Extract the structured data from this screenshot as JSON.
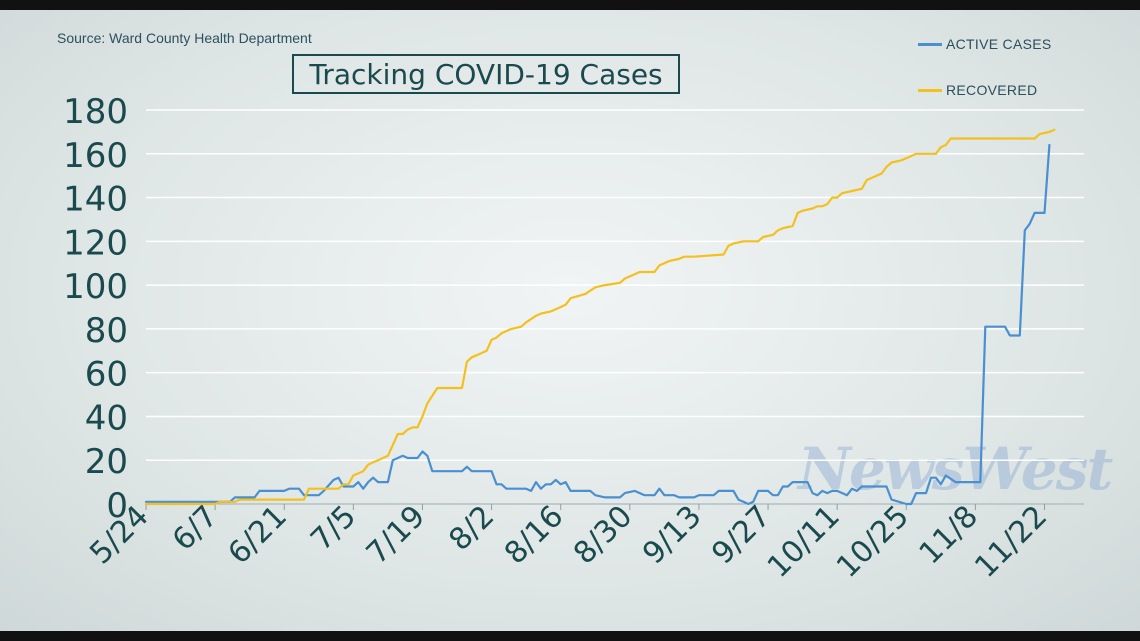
{
  "source": "Source: Ward County Health Department",
  "title": "Tracking COVID-19 Cases",
  "watermark": "NewsWest",
  "colors": {
    "active": "#4a8fd0",
    "recovered": "#f4c01e",
    "axis_text": "#1b4a4e",
    "grid": "#ffffff"
  },
  "chart_data": {
    "type": "line",
    "title": "Tracking COVID-19 Cases",
    "xlabel": "",
    "ylabel": "",
    "ylim": [
      0,
      180
    ],
    "yticks": [
      0,
      20,
      40,
      60,
      80,
      100,
      120,
      140,
      160,
      180
    ],
    "xlim": [
      "2020-05-24",
      "2020-11-30"
    ],
    "xticks": [
      "5/24",
      "6/7",
      "6/21",
      "7/5",
      "7/19",
      "8/2",
      "8/16",
      "8/30",
      "9/13",
      "9/27",
      "10/11",
      "10/25",
      "11/8",
      "11/22"
    ],
    "grid": "horizontal",
    "legend_position": "top-right",
    "series": [
      {
        "name": "ACTIVE CASES",
        "color": "#4a8fd0",
        "points": [
          [
            "5/24",
            1
          ],
          [
            "6/7",
            1
          ],
          [
            "6/10",
            1
          ],
          [
            "6/11",
            3
          ],
          [
            "6/15",
            3
          ],
          [
            "6/16",
            6
          ],
          [
            "6/21",
            6
          ],
          [
            "6/22",
            7
          ],
          [
            "6/24",
            7
          ],
          [
            "6/25",
            4
          ],
          [
            "6/28",
            4
          ],
          [
            "6/29",
            6
          ],
          [
            "7/1",
            11
          ],
          [
            "7/2",
            12
          ],
          [
            "7/3",
            8
          ],
          [
            "7/5",
            8
          ],
          [
            "7/6",
            10
          ],
          [
            "7/7",
            7
          ],
          [
            "7/8",
            10
          ],
          [
            "7/9",
            12
          ],
          [
            "7/10",
            10
          ],
          [
            "7/12",
            10
          ],
          [
            "7/13",
            20
          ],
          [
            "7/14",
            21
          ],
          [
            "7/15",
            22
          ],
          [
            "7/16",
            21
          ],
          [
            "7/18",
            21
          ],
          [
            "7/19",
            24
          ],
          [
            "7/20",
            22
          ],
          [
            "7/21",
            15
          ],
          [
            "7/27",
            15
          ],
          [
            "7/28",
            17
          ],
          [
            "7/29",
            15
          ],
          [
            "8/2",
            15
          ],
          [
            "8/3",
            9
          ],
          [
            "8/4",
            9
          ],
          [
            "8/5",
            7
          ],
          [
            "8/9",
            7
          ],
          [
            "8/10",
            6
          ],
          [
            "8/11",
            10
          ],
          [
            "8/12",
            7
          ],
          [
            "8/13",
            9
          ],
          [
            "8/14",
            9
          ],
          [
            "8/15",
            11
          ],
          [
            "8/16",
            9
          ],
          [
            "8/17",
            10
          ],
          [
            "8/18",
            6
          ],
          [
            "8/22",
            6
          ],
          [
            "8/23",
            4
          ],
          [
            "8/25",
            3
          ],
          [
            "8/28",
            3
          ],
          [
            "8/29",
            5
          ],
          [
            "8/31",
            6
          ],
          [
            "9/1",
            5
          ],
          [
            "9/2",
            4
          ],
          [
            "9/4",
            4
          ],
          [
            "9/5",
            7
          ],
          [
            "9/6",
            4
          ],
          [
            "9/8",
            4
          ],
          [
            "9/9",
            3
          ],
          [
            "9/12",
            3
          ],
          [
            "9/13",
            4
          ],
          [
            "9/16",
            4
          ],
          [
            "9/17",
            6
          ],
          [
            "9/20",
            6
          ],
          [
            "9/21",
            2
          ],
          [
            "9/22",
            1
          ],
          [
            "9/23",
            0
          ],
          [
            "9/24",
            1
          ],
          [
            "9/25",
            6
          ],
          [
            "9/27",
            6
          ],
          [
            "9/28",
            4
          ],
          [
            "9/29",
            4
          ],
          [
            "9/30",
            8
          ],
          [
            "10/1",
            8
          ],
          [
            "10/2",
            10
          ],
          [
            "10/5",
            10
          ],
          [
            "10/6",
            5
          ],
          [
            "10/7",
            4
          ],
          [
            "10/8",
            6
          ],
          [
            "10/9",
            5
          ],
          [
            "10/10",
            6
          ],
          [
            "10/11",
            6
          ],
          [
            "10/13",
            4
          ],
          [
            "10/14",
            7
          ],
          [
            "10/15",
            6
          ],
          [
            "10/16",
            8
          ],
          [
            "10/19",
            8
          ],
          [
            "10/21",
            8
          ],
          [
            "10/22",
            2
          ],
          [
            "10/25",
            0
          ],
          [
            "10/26",
            0
          ],
          [
            "10/27",
            5
          ],
          [
            "10/29",
            5
          ],
          [
            "10/30",
            12
          ],
          [
            "10/31",
            12
          ],
          [
            "11/1",
            9
          ],
          [
            "11/2",
            13
          ],
          [
            "11/4",
            10
          ],
          [
            "11/9",
            10
          ],
          [
            "11/10",
            81
          ],
          [
            "11/14",
            81
          ],
          [
            "11/15",
            77
          ],
          [
            "11/17",
            77
          ],
          [
            "11/18",
            125
          ],
          [
            "11/19",
            128
          ],
          [
            "11/20",
            133
          ],
          [
            "11/22",
            133
          ],
          [
            "11/23",
            164
          ]
        ]
      },
      {
        "name": "RECOVERED",
        "color": "#f4c01e",
        "points": [
          [
            "5/24",
            0
          ],
          [
            "6/7",
            0
          ],
          [
            "6/8",
            1
          ],
          [
            "6/11",
            1
          ],
          [
            "6/12",
            2
          ],
          [
            "6/25",
            2
          ],
          [
            "6/26",
            7
          ],
          [
            "7/2",
            7
          ],
          [
            "7/3",
            9
          ],
          [
            "7/4",
            9
          ],
          [
            "7/5",
            13
          ],
          [
            "7/6",
            14
          ],
          [
            "7/7",
            15
          ],
          [
            "7/8",
            18
          ],
          [
            "7/9",
            19
          ],
          [
            "7/10",
            20
          ],
          [
            "7/11",
            21
          ],
          [
            "7/12",
            22
          ],
          [
            "7/14",
            32
          ],
          [
            "7/15",
            32
          ],
          [
            "7/16",
            34
          ],
          [
            "7/17",
            35
          ],
          [
            "7/18",
            35
          ],
          [
            "7/19",
            40
          ],
          [
            "7/20",
            46
          ],
          [
            "7/22",
            53
          ],
          [
            "7/27",
            53
          ],
          [
            "7/28",
            65
          ],
          [
            "7/29",
            67
          ],
          [
            "7/30",
            68
          ],
          [
            "7/31",
            69
          ],
          [
            "8/1",
            70
          ],
          [
            "8/2",
            75
          ],
          [
            "8/3",
            76
          ],
          [
            "8/4",
            78
          ],
          [
            "8/6",
            80
          ],
          [
            "8/8",
            81
          ],
          [
            "8/9",
            83
          ],
          [
            "8/11",
            86
          ],
          [
            "8/12",
            87
          ],
          [
            "8/14",
            88
          ],
          [
            "8/15",
            89
          ],
          [
            "8/17",
            91
          ],
          [
            "8/18",
            94
          ],
          [
            "8/21",
            96
          ],
          [
            "8/23",
            99
          ],
          [
            "8/25",
            100
          ],
          [
            "8/28",
            101
          ],
          [
            "8/29",
            103
          ],
          [
            "8/31",
            105
          ],
          [
            "9/1",
            106
          ],
          [
            "9/4",
            106
          ],
          [
            "9/5",
            109
          ],
          [
            "9/6",
            110
          ],
          [
            "9/7",
            111
          ],
          [
            "9/9",
            112
          ],
          [
            "9/10",
            113
          ],
          [
            "9/12",
            113
          ],
          [
            "9/18",
            114
          ],
          [
            "9/19",
            118
          ],
          [
            "9/20",
            119
          ],
          [
            "9/22",
            120
          ],
          [
            "9/25",
            120
          ],
          [
            "9/26",
            122
          ],
          [
            "9/28",
            123
          ],
          [
            "9/29",
            125
          ],
          [
            "9/30",
            126
          ],
          [
            "10/2",
            127
          ],
          [
            "10/3",
            133
          ],
          [
            "10/4",
            134
          ],
          [
            "10/6",
            135
          ],
          [
            "10/7",
            136
          ],
          [
            "10/8",
            136
          ],
          [
            "10/9",
            137
          ],
          [
            "10/10",
            140
          ],
          [
            "10/11",
            140
          ],
          [
            "10/12",
            142
          ],
          [
            "10/14",
            143
          ],
          [
            "10/16",
            144
          ],
          [
            "10/17",
            148
          ],
          [
            "10/18",
            149
          ],
          [
            "10/20",
            151
          ],
          [
            "10/21",
            154
          ],
          [
            "10/22",
            156
          ],
          [
            "10/24",
            157
          ],
          [
            "10/25",
            158
          ],
          [
            "10/26",
            159
          ],
          [
            "10/27",
            160
          ],
          [
            "10/31",
            160
          ],
          [
            "11/1",
            163
          ],
          [
            "11/2",
            164
          ],
          [
            "11/3",
            167
          ],
          [
            "11/20",
            167
          ],
          [
            "11/21",
            169
          ],
          [
            "11/23",
            170
          ],
          [
            "11/24",
            171
          ]
        ]
      }
    ]
  }
}
